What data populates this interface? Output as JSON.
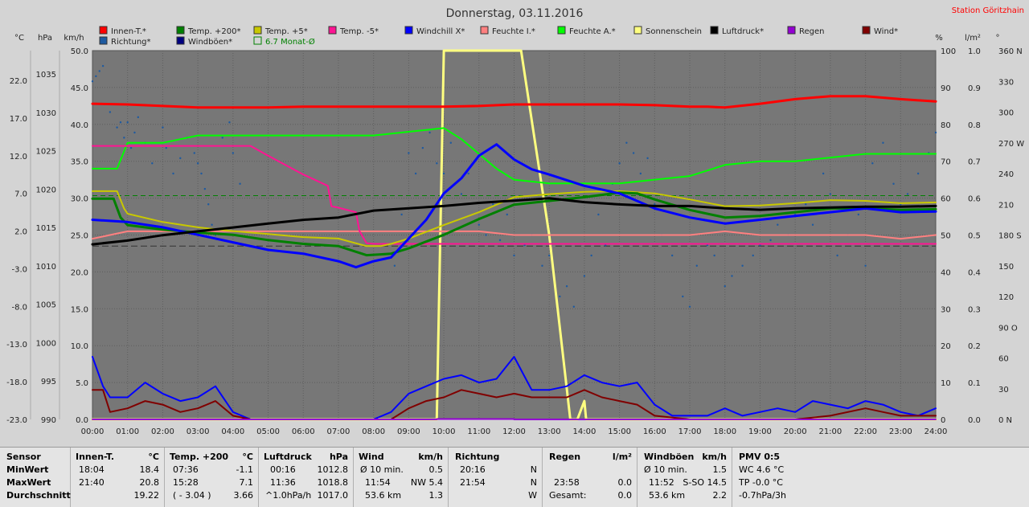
{
  "title": "Donnerstag, 03.11.2016",
  "station": "Station Göritzhain",
  "left_units": [
    "°C",
    "hPa",
    "km/h"
  ],
  "right_units": [
    "%",
    "l/m²",
    "°"
  ],
  "legend": [
    {
      "label": "Innen-T.*",
      "color": "#ff0000"
    },
    {
      "label": "Temp. +200*",
      "color": "#008000"
    },
    {
      "label": "Temp. +5*",
      "color": "#c8c800"
    },
    {
      "label": "Temp. -5*",
      "color": "#ff1493"
    },
    {
      "label": "Windchill X*",
      "color": "#0000ff"
    },
    {
      "label": "Feuchte I.*",
      "color": "#ff8080"
    },
    {
      "label": "Feuchte A.*",
      "color": "#00ff00"
    },
    {
      "label": "Sonnenschein",
      "color": "#ffff80"
    },
    {
      "label": "Luftdruck*",
      "color": "#000000"
    },
    {
      "label": "Regen",
      "color": "#9400d3"
    },
    {
      "label": "Wind*",
      "color": "#800000"
    },
    {
      "label": "Richtung*",
      "color": "#1e5aa0"
    },
    {
      "label": "Windböen*",
      "color": "#000080"
    },
    {
      "label": "6.7 Monat-Ø",
      "color": "#008000",
      "outline": true
    }
  ],
  "chart_data": {
    "type": "line",
    "x_label_hours": [
      "00:00",
      "01:00",
      "02:00",
      "03:00",
      "04:00",
      "05:00",
      "06:00",
      "07:00",
      "08:00",
      "09:00",
      "10:00",
      "11:00",
      "12:00",
      "13:00",
      "14:00",
      "15:00",
      "16:00",
      "17:00",
      "18:00",
      "19:00",
      "20:00",
      "21:00",
      "22:00",
      "23:00",
      "24:00"
    ],
    "xlim": [
      0,
      24
    ],
    "axes": {
      "temp_c": {
        "ticks": [
          "22.0",
          "17.0",
          "12.0",
          "7.0",
          "2.0",
          "-3.0",
          "-8.0",
          "-13.0",
          "-18.0",
          "-23.0"
        ],
        "range": [
          -23,
          22
        ]
      },
      "pressure_hpa": {
        "ticks": [
          "1035",
          "1030",
          "1025",
          "1020",
          "1015",
          "1010",
          "1005",
          "1000",
          "995",
          "990"
        ],
        "range": [
          990,
          1035
        ]
      },
      "wind_kmh": {
        "ticks": [
          "50.0",
          "45.0",
          "40.0",
          "35.0",
          "30.0",
          "25.0",
          "20.0",
          "15.0",
          "10.0",
          "5.0",
          "0.0"
        ],
        "range": [
          0,
          50
        ]
      },
      "humidity_pct": {
        "ticks": [
          "100",
          "90",
          "80",
          "70",
          "60",
          "50",
          "40",
          "30",
          "20",
          "10",
          "0"
        ],
        "range": [
          0,
          100
        ]
      },
      "rain_lm2": {
        "ticks": [
          "1.0",
          "0.9",
          "0.8",
          "0.7",
          "0.6",
          "0.5",
          "0.4",
          "0.3",
          "0.2",
          "0.1",
          "0.0"
        ],
        "range": [
          0,
          1
        ]
      },
      "direction_deg": {
        "ticks": [
          "360 N",
          "330",
          "300",
          "270 W",
          "240",
          "210",
          "180 S",
          "150",
          "120",
          "90 O",
          "60",
          "30",
          "0 N"
        ],
        "range": [
          0,
          360
        ]
      }
    },
    "series": [
      {
        "name": "Innen-T.*",
        "axis": "temp",
        "color": "#ff0000",
        "width": 3,
        "x": [
          0,
          1,
          2,
          3,
          4,
          5,
          6,
          7,
          8,
          9,
          10,
          11,
          12,
          13,
          14,
          15,
          16,
          17,
          17.5,
          18,
          19,
          20,
          21,
          22,
          23,
          24
        ],
        "y": [
          18.9,
          18.8,
          18.6,
          18.4,
          18.4,
          18.4,
          18.5,
          18.5,
          18.5,
          18.5,
          18.5,
          18.6,
          18.8,
          18.8,
          18.8,
          18.8,
          18.7,
          18.5,
          18.5,
          18.4,
          18.9,
          19.5,
          19.9,
          19.9,
          19.5,
          19.2
        ]
      },
      {
        "name": "Temp. +200*",
        "axis": "temp",
        "color": "#008000",
        "width": 3,
        "x": [
          0,
          0.6,
          0.8,
          1,
          2,
          3,
          4,
          5,
          6,
          7,
          7.8,
          8.2,
          8.5,
          9,
          10,
          11,
          12,
          13,
          14,
          15,
          15.5,
          16,
          17,
          18,
          19,
          20,
          21,
          22,
          23,
          24
        ],
        "y": [
          6.3,
          6.3,
          3.8,
          2.8,
          2.2,
          1.8,
          1.5,
          0.8,
          0.3,
          0.0,
          -1.2,
          -1.1,
          -1.0,
          -0.3,
          1.5,
          3.6,
          5.5,
          6.0,
          6.5,
          7.1,
          7.0,
          6.2,
          4.8,
          3.8,
          4.0,
          4.5,
          5.0,
          5.0,
          4.8,
          4.9
        ]
      },
      {
        "name": "Temp. +5*",
        "axis": "temp",
        "color": "#c8c800",
        "width": 2,
        "x": [
          0,
          0.7,
          0.9,
          1,
          2,
          3,
          4,
          5,
          6,
          7,
          7.8,
          8.2,
          8.5,
          9,
          10,
          11,
          12,
          13,
          14,
          15,
          16,
          17,
          18,
          19,
          20,
          21,
          22,
          23,
          24
        ],
        "y": [
          7.3,
          7.3,
          5.0,
          4.3,
          3.2,
          2.5,
          2.0,
          1.6,
          1.2,
          1.0,
          0.0,
          0.0,
          0.3,
          1.0,
          2.8,
          4.5,
          6.5,
          6.9,
          7.2,
          7.3,
          7.0,
          6.2,
          5.3,
          5.4,
          5.7,
          6.1,
          6.0,
          5.7,
          5.8
        ]
      },
      {
        "name": "Temp. -5*",
        "axis": "temp",
        "color": "#ff1493",
        "width": 2,
        "x": [
          0,
          2,
          4,
          4.5,
          5,
          6,
          6.7,
          6.8,
          7,
          7.5,
          7.6,
          7.8,
          8,
          24
        ],
        "y": [
          13.3,
          13.3,
          13.3,
          13.3,
          12.0,
          9.5,
          8.0,
          5.3,
          5.1,
          4.5,
          2.0,
          0.4,
          0.3,
          0.3
        ]
      },
      {
        "name": "Windchill X*",
        "axis": "temp",
        "color": "#0000ff",
        "width": 3,
        "x": [
          0,
          1,
          2,
          3,
          4,
          5,
          6,
          7,
          7.5,
          8,
          8.5,
          9,
          9.5,
          10,
          10.5,
          11,
          11.5,
          12,
          12.5,
          13,
          14,
          15,
          16,
          17,
          18,
          19,
          20,
          21,
          22,
          23,
          24
        ],
        "y": [
          3.5,
          3.2,
          2.5,
          1.5,
          0.5,
          -0.5,
          -1.0,
          -2.0,
          -2.8,
          -2.0,
          -1.5,
          1.0,
          3.5,
          7.0,
          9.0,
          12.0,
          13.5,
          11.5,
          10.2,
          9.5,
          8.0,
          7.0,
          5.0,
          3.8,
          3.0,
          3.5,
          4.0,
          4.5,
          5.0,
          4.5,
          4.6
        ]
      },
      {
        "name": "Feuchte I.*",
        "axis": "hum",
        "color": "#ff8080",
        "width": 2,
        "x": [
          0,
          1,
          2,
          3,
          4,
          5,
          6,
          7,
          8,
          9,
          10,
          11,
          12,
          13,
          14,
          15,
          16,
          17,
          18,
          19,
          20,
          21,
          22,
          23,
          24
        ],
        "y": [
          49,
          51,
          51,
          51,
          51,
          51,
          51,
          51,
          51,
          51,
          51,
          51,
          50,
          50,
          50,
          50,
          50,
          50,
          51,
          50,
          50,
          50,
          50,
          49,
          50
        ]
      },
      {
        "name": "Feuchte A.*",
        "axis": "hum",
        "color": "#00ff00",
        "width": 2,
        "x": [
          0,
          0.7,
          1,
          2,
          3,
          4,
          5,
          6,
          7,
          8,
          9,
          10,
          10.5,
          11,
          11.5,
          12,
          13,
          14,
          15,
          16,
          17,
          18,
          19,
          20,
          21,
          22,
          23,
          24
        ],
        "y": [
          68,
          68,
          75,
          75,
          77,
          77,
          77,
          77,
          77,
          77,
          78,
          79,
          76,
          72,
          68,
          65,
          64,
          64,
          64,
          65,
          66,
          69,
          70,
          70,
          71,
          72,
          72,
          72
        ]
      },
      {
        "name": "Luftdruck*",
        "axis": "pres",
        "color": "#000000",
        "width": 3,
        "x": [
          0,
          1,
          2,
          3,
          4,
          5,
          6,
          7,
          8,
          9,
          10,
          11,
          12,
          13,
          14,
          15,
          16,
          17,
          18,
          19,
          20,
          21,
          22,
          23,
          24
        ],
        "y": [
          1012.8,
          1013.3,
          1014.0,
          1014.5,
          1015.0,
          1015.5,
          1016.0,
          1016.3,
          1017.2,
          1017.5,
          1017.8,
          1018.2,
          1018.5,
          1018.8,
          1018.3,
          1018.0,
          1017.8,
          1017.8,
          1017.5,
          1017.3,
          1017.5,
          1017.6,
          1017.7,
          1017.7,
          1017.8
        ]
      },
      {
        "name": "Sonnenschein",
        "axis": "hum",
        "color": "#ffff80",
        "width": 3,
        "x": [
          0,
          9.8,
          10,
          12.2,
          13,
          13.6,
          13.8,
          14.0,
          14.05,
          24
        ],
        "y": [
          0,
          0,
          100,
          100,
          50,
          0,
          0,
          5,
          0,
          0
        ]
      },
      {
        "name": "Windböen*",
        "axis": "wind",
        "color": "#0000ff",
        "width": 2,
        "x": [
          0,
          0.3,
          0.5,
          1,
          1.5,
          2,
          2.5,
          3,
          3.5,
          4,
          4.5,
          5,
          6,
          7,
          8,
          8.5,
          9,
          9.5,
          10,
          10.5,
          11,
          11.5,
          12,
          12.5,
          13,
          13.5,
          14,
          14.5,
          15,
          15.5,
          16,
          16.5,
          17,
          17.5,
          18,
          18.5,
          19,
          19.5,
          20,
          20.5,
          21,
          21.5,
          22,
          22.5,
          23,
          23.5,
          24
        ],
        "y": [
          8.5,
          4.5,
          3.0,
          3.0,
          5.0,
          3.5,
          2.5,
          3.0,
          4.5,
          1.0,
          0.0,
          0.0,
          0.0,
          0.0,
          0.0,
          1.0,
          3.5,
          4.5,
          5.5,
          6.0,
          5.0,
          5.5,
          8.5,
          4.0,
          4.0,
          4.5,
          6.0,
          5.0,
          4.5,
          5.0,
          2.0,
          0.5,
          0.5,
          0.5,
          1.5,
          0.5,
          1.0,
          1.5,
          1.0,
          2.5,
          2.0,
          1.5,
          2.5,
          2.0,
          1.0,
          0.5,
          1.5
        ]
      },
      {
        "name": "Wind*",
        "axis": "wind",
        "color": "#800000",
        "width": 2,
        "x": [
          0,
          0.3,
          0.5,
          1,
          1.5,
          2,
          2.5,
          3,
          3.5,
          4,
          4.5,
          5,
          8.5,
          9,
          9.5,
          10,
          10.5,
          11,
          11.5,
          12,
          12.5,
          13,
          13.5,
          14,
          14.5,
          15,
          15.5,
          16,
          17,
          18,
          19,
          20,
          21,
          22,
          22.5,
          23,
          24
        ],
        "y": [
          4.0,
          4.0,
          1.0,
          1.5,
          2.5,
          2.0,
          1.0,
          1.5,
          2.5,
          0.5,
          0.0,
          0.0,
          0.0,
          1.5,
          2.5,
          3.0,
          4.0,
          3.5,
          3.0,
          3.5,
          3.0,
          3.0,
          3.0,
          4.0,
          3.0,
          2.5,
          2.0,
          0.5,
          0.0,
          0.0,
          0.0,
          0.0,
          0.5,
          1.5,
          1.0,
          0.5,
          0.5
        ]
      },
      {
        "name": "Regen",
        "axis": "rain",
        "color": "#9400d3",
        "width": 2,
        "x": [
          0,
          9.8,
          9.8,
          12.0,
          12.0,
          24
        ],
        "y": [
          0,
          0,
          0.001,
          0.001,
          0,
          0
        ]
      }
    ],
    "monthly_avg_temp": 6.7,
    "direction_scatter": {
      "axis": "direction_deg",
      "x": [
        0,
        0.1,
        0.2,
        0.3,
        0.5,
        0.7,
        0.8,
        0.9,
        1,
        1.1,
        1.2,
        1.3,
        1.5,
        1.7,
        2,
        2.1,
        2.3,
        2.5,
        2.7,
        2.9,
        3.0,
        3.1,
        3.2,
        3.3,
        3.4,
        3.5,
        3.7,
        3.9,
        4.0,
        4.2,
        8.6,
        8.8,
        9.0,
        9.2,
        9.4,
        9.6,
        9.8,
        10.0,
        10.2,
        10.5,
        10.7,
        11.0,
        11.2,
        11.4,
        11.6,
        11.8,
        12.0,
        12.3,
        12.5,
        12.8,
        13.0,
        13.3,
        13.5,
        13.7,
        14.0,
        14.2,
        14.4,
        14.6,
        14.8,
        15.0,
        15.2,
        15.4,
        15.6,
        15.8,
        16.0,
        16.2,
        16.5,
        16.8,
        17.0,
        17.2,
        17.5,
        17.7,
        18.0,
        18.2,
        18.5,
        18.8,
        19.0,
        19.3,
        19.5,
        19.8,
        20.0,
        20.3,
        20.5,
        20.8,
        21.0,
        21.2,
        21.5,
        21.8,
        22.0,
        22.2,
        22.5,
        22.8,
        23.0,
        23.2,
        23.5,
        23.8,
        24.0
      ],
      "y": [
        330,
        335,
        340,
        345,
        300,
        285,
        290,
        275,
        290,
        265,
        280,
        295,
        270,
        250,
        285,
        265,
        240,
        255,
        275,
        260,
        250,
        240,
        225,
        210,
        190,
        180,
        275,
        290,
        260,
        230,
        150,
        200,
        260,
        240,
        265,
        280,
        250,
        240,
        270,
        220,
        240,
        190,
        180,
        210,
        175,
        200,
        160,
        170,
        180,
        150,
        160,
        120,
        130,
        110,
        140,
        160,
        200,
        170,
        230,
        250,
        270,
        260,
        240,
        255,
        210,
        180,
        160,
        120,
        110,
        150,
        170,
        160,
        130,
        140,
        150,
        160,
        170,
        175,
        190,
        180,
        200,
        210,
        190,
        240,
        220,
        160,
        180,
        200,
        150,
        250,
        270,
        230,
        210,
        220,
        240,
        260,
        280
      ]
    }
  },
  "stats": {
    "sensor": {
      "header": "Sensor",
      "rows": [
        "MinWert",
        "MaxWert",
        "Durchschnitt"
      ]
    },
    "innen": {
      "header": "Innen-T.",
      "unit": "°C",
      "rows": [
        [
          "18:04",
          "18.4"
        ],
        [
          "21:40",
          "20.8"
        ],
        [
          "",
          "19.22"
        ]
      ]
    },
    "temp200": {
      "header": "Temp. +200",
      "unit": "°C",
      "rows": [
        [
          "07:36",
          "-1.1"
        ],
        [
          "15:28",
          "7.1"
        ],
        [
          "( - 3.04 )",
          "3.66"
        ]
      ]
    },
    "luftdruck": {
      "header": "Luftdruck",
      "unit": "hPa",
      "rows": [
        [
          "00:16",
          "1012.8"
        ],
        [
          "11:36",
          "1018.8"
        ],
        [
          "^1.0hPa/h",
          "1017.0"
        ]
      ]
    },
    "wind": {
      "header": "Wind",
      "unit": "km/h",
      "rows": [
        [
          "Ø 10 min.",
          "0.5"
        ],
        [
          "11:54",
          "NW 5.4"
        ],
        [
          "53.6 km",
          "1.3"
        ]
      ]
    },
    "richtung": {
      "header": "Richtung",
      "rows": [
        [
          "20:16",
          "N"
        ],
        [
          "21:54",
          "N"
        ],
        [
          "",
          "W"
        ]
      ]
    },
    "regen": {
      "header": "Regen",
      "unit": "l/m²",
      "rows": [
        [
          "",
          ""
        ],
        [
          "23:58",
          "0.0"
        ],
        [
          "Gesamt:",
          "0.0"
        ]
      ]
    },
    "windboen": {
      "header": "Windböen",
      "unit": "km/h",
      "rows": [
        [
          "Ø 10 min.",
          "1.5"
        ],
        [
          "11:52",
          "S-SO 14.5"
        ],
        [
          "53.6 km",
          "2.2"
        ]
      ]
    },
    "pmv": {
      "header": "PMV 0:5",
      "rows": [
        "WC 4.6 °C",
        "TP -0.0 °C",
        "-0.7hPa/3h"
      ]
    }
  }
}
